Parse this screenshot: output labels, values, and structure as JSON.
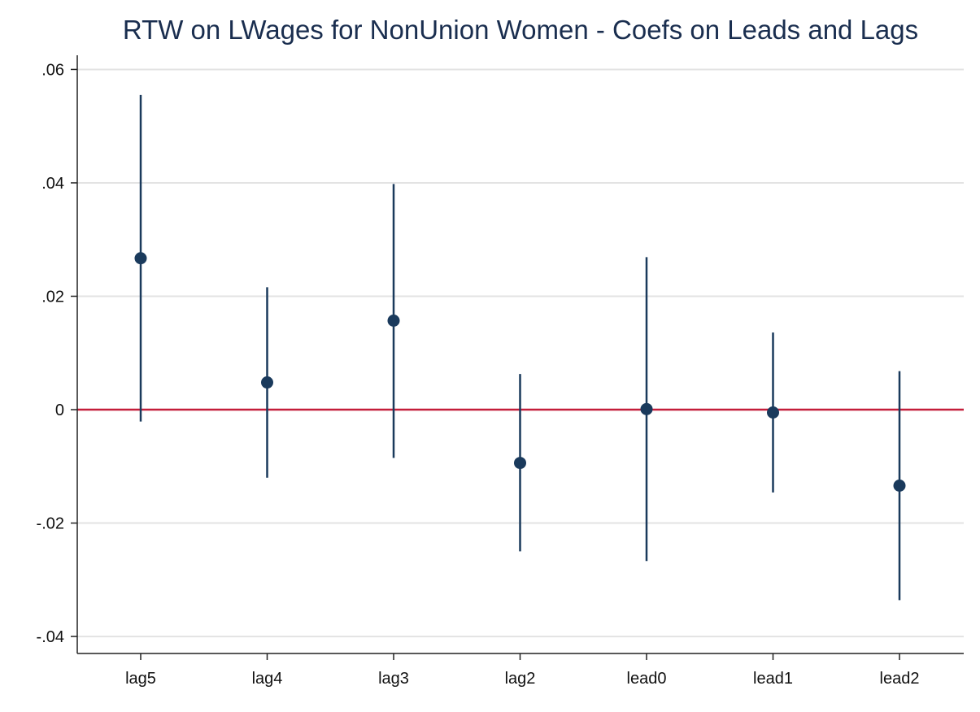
{
  "chart_data": {
    "type": "scatter",
    "title": "RTW on LWages for NonUnion Women - Coefs on Leads and Lags",
    "xlabel": "",
    "ylabel": "",
    "categories": [
      "lag5",
      "lag4",
      "lag3",
      "lag2",
      "lead0",
      "lead1",
      "lead2"
    ],
    "series": [
      {
        "estimates": [
          0.0267,
          0.0048,
          0.0157,
          -0.0094,
          0.0001,
          -0.0005,
          -0.0134
        ],
        "ci_lower": [
          -0.0021,
          -0.012,
          -0.0085,
          -0.025,
          -0.0267,
          -0.0146,
          -0.0336
        ],
        "ci_upper": [
          0.0555,
          0.0216,
          0.0398,
          0.0063,
          0.0269,
          0.0136,
          0.0068
        ]
      }
    ],
    "ylim": [
      -0.043,
      0.0625
    ],
    "yticks": [
      -0.04,
      -0.02,
      0,
      0.02,
      0.04,
      0.06
    ],
    "ytick_labels": [
      "-.04",
      "-.02",
      "0",
      ".02",
      ".04",
      ".06"
    ],
    "reference_line": 0,
    "grid": true,
    "colors": {
      "marker": "#1a3a5c",
      "ci_line": "#1a3a5c",
      "reference": "#c41e3a",
      "grid": "#e3e3e3",
      "axis": "#222222",
      "title": "#1a2e4f"
    }
  }
}
